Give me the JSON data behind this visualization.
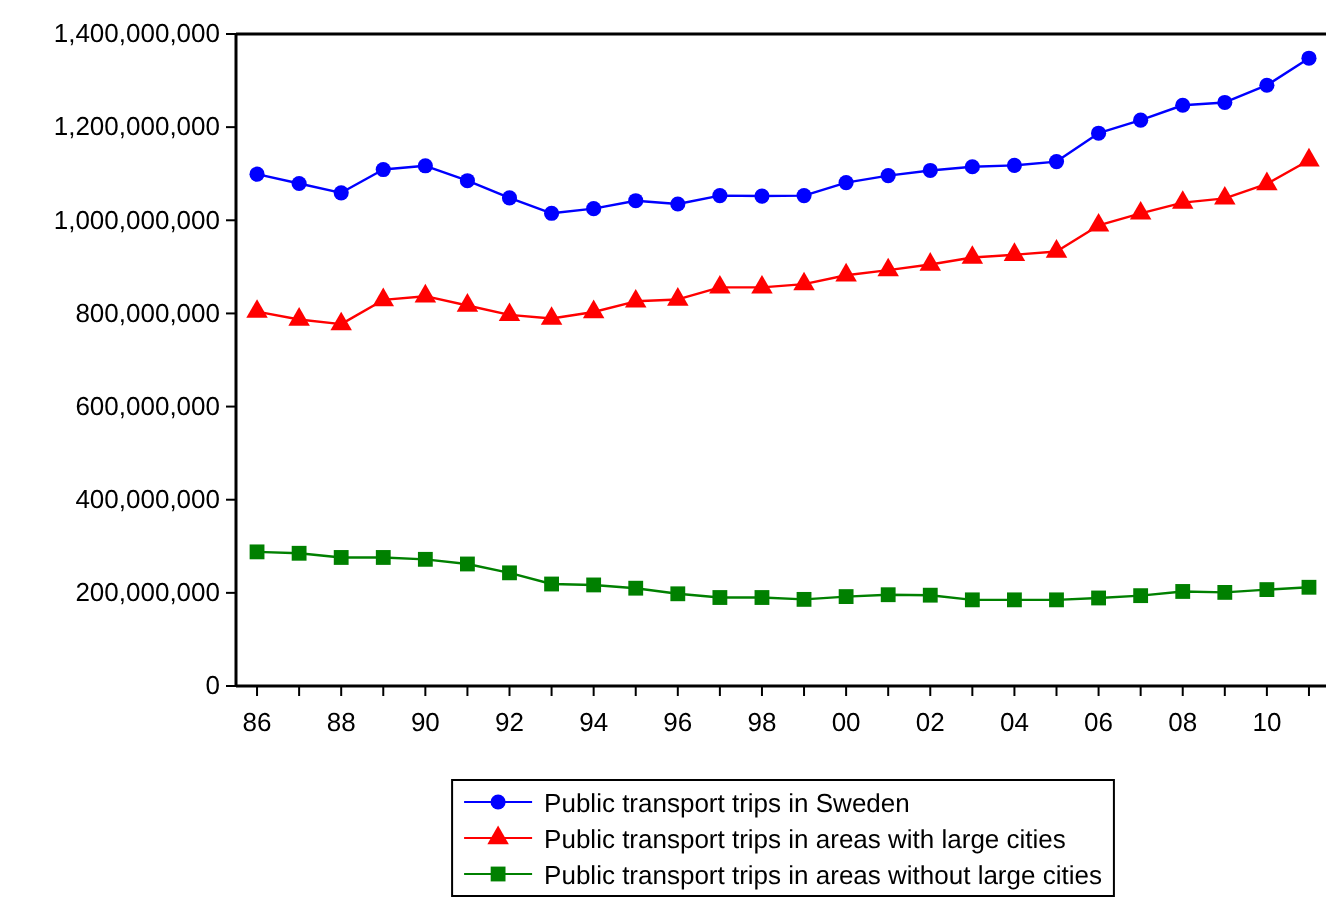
{
  "chart_data": {
    "type": "line",
    "x": [
      1986,
      1987,
      1988,
      1989,
      1990,
      1991,
      1992,
      1993,
      1994,
      1995,
      1996,
      1997,
      1998,
      1999,
      2000,
      2001,
      2002,
      2003,
      2004,
      2005,
      2006,
      2007,
      2008,
      2009,
      2010,
      2011
    ],
    "series": [
      {
        "name": "Public transport trips in Sweden",
        "color": "#0000ff",
        "marker": "circle",
        "values": [
          1099000000,
          1079000000,
          1059000000,
          1109000000,
          1117000000,
          1085000000,
          1048000000,
          1015000000,
          1025000000,
          1042000000,
          1035000000,
          1053000000,
          1052000000,
          1053000000,
          1081000000,
          1096000000,
          1107000000,
          1115000000,
          1118000000,
          1126000000,
          1187000000,
          1215000000,
          1247000000,
          1253000000,
          1290000000,
          1348000000
        ]
      },
      {
        "name": "Public transport trips in areas with large cities",
        "color": "#ff0000",
        "marker": "triangle",
        "values": [
          804000000,
          787000000,
          777000000,
          829000000,
          837000000,
          817000000,
          797000000,
          789000000,
          803000000,
          826000000,
          830000000,
          856000000,
          856000000,
          863000000,
          882000000,
          893000000,
          905000000,
          920000000,
          926000000,
          933000000,
          989000000,
          1015000000,
          1038000000,
          1047000000,
          1078000000,
          1129000000
        ]
      },
      {
        "name": "Public transport trips in areas without large cities",
        "color": "#008000",
        "marker": "square",
        "values": [
          288000000,
          285000000,
          276000000,
          276000000,
          272000000,
          262000000,
          243000000,
          219000000,
          217000000,
          210000000,
          198000000,
          190000000,
          190000000,
          186000000,
          192000000,
          196000000,
          195000000,
          185000000,
          185000000,
          185000000,
          189000000,
          194000000,
          203000000,
          201000000,
          207000000,
          212000000
        ]
      }
    ],
    "xlim": [
      1985.5,
      2011.5
    ],
    "xticks": [
      {
        "value": 1986,
        "label": "86"
      },
      {
        "value": 1987,
        "label": null
      },
      {
        "value": 1988,
        "label": "88"
      },
      {
        "value": 1989,
        "label": null
      },
      {
        "value": 1990,
        "label": "90"
      },
      {
        "value": 1991,
        "label": null
      },
      {
        "value": 1992,
        "label": "92"
      },
      {
        "value": 1993,
        "label": null
      },
      {
        "value": 1994,
        "label": "94"
      },
      {
        "value": 1995,
        "label": null
      },
      {
        "value": 1996,
        "label": "96"
      },
      {
        "value": 1997,
        "label": null
      },
      {
        "value": 1998,
        "label": "98"
      },
      {
        "value": 1999,
        "label": null
      },
      {
        "value": 2000,
        "label": "00"
      },
      {
        "value": 2001,
        "label": null
      },
      {
        "value": 2002,
        "label": "02"
      },
      {
        "value": 2003,
        "label": null
      },
      {
        "value": 2004,
        "label": "04"
      },
      {
        "value": 2005,
        "label": null
      },
      {
        "value": 2006,
        "label": "06"
      },
      {
        "value": 2007,
        "label": null
      },
      {
        "value": 2008,
        "label": "08"
      },
      {
        "value": 2009,
        "label": null
      },
      {
        "value": 2010,
        "label": "10"
      },
      {
        "value": 2011,
        "label": null
      }
    ],
    "ylim": [
      0,
      1400000000
    ],
    "yticks": [
      {
        "value": 0,
        "label": "0"
      },
      {
        "value": 200000000,
        "label": "200,000,000"
      },
      {
        "value": 400000000,
        "label": "400,000,000"
      },
      {
        "value": 600000000,
        "label": "600,000,000"
      },
      {
        "value": 800000000,
        "label": "800,000,000"
      },
      {
        "value": 1000000000,
        "label": "1,000,000,000"
      },
      {
        "value": 1200000000,
        "label": "1,200,000,000"
      },
      {
        "value": 1400000000,
        "label": "1,400,000,000"
      }
    ],
    "grid": false,
    "legend": "bottom",
    "line_style": "solid"
  }
}
